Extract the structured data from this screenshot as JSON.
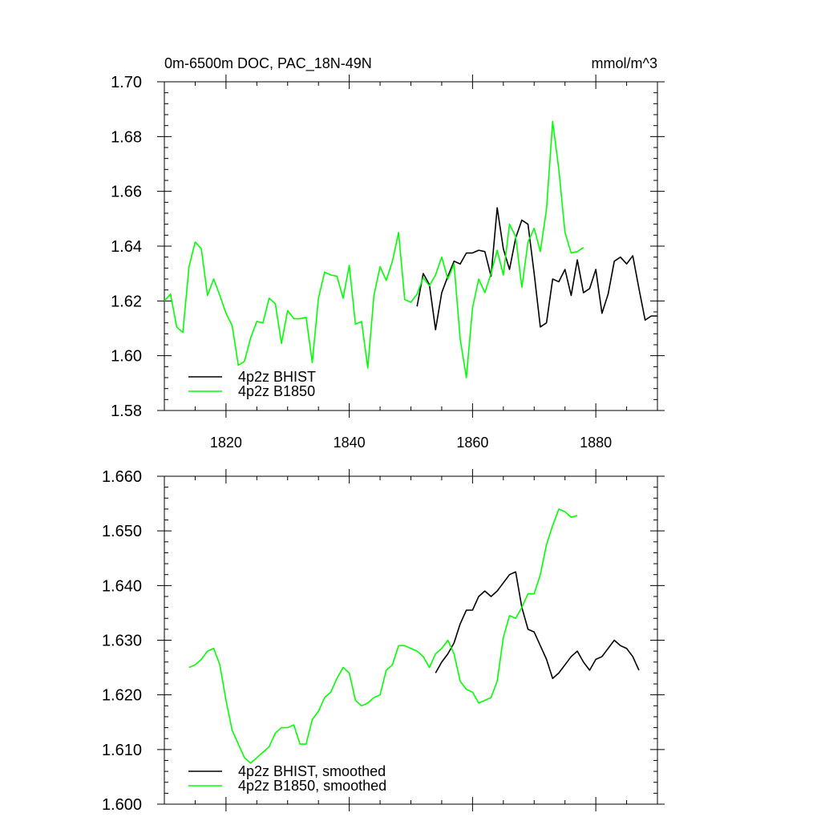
{
  "figure": {
    "title_left": "0m-6500m DOC, PAC_18N-49N",
    "title_right": "mmol/m^3"
  },
  "chart_data": [
    {
      "type": "line",
      "panel": "top",
      "title": "0m-6500m DOC, PAC_18N-49N",
      "units": "mmol/m^3",
      "xlim": [
        1810,
        1890
      ],
      "ylim": [
        1.58,
        1.7
      ],
      "x_ticks": [
        1820,
        1840,
        1860,
        1880
      ],
      "x_tick_labels": [
        "1820",
        "1840",
        "1860",
        "1880"
      ],
      "x_minor_step": 5,
      "y_ticks": [
        1.58,
        1.6,
        1.62,
        1.64,
        1.66,
        1.68,
        1.7
      ],
      "y_tick_labels": [
        "1.58",
        "1.60",
        "1.62",
        "1.64",
        "1.66",
        "1.68",
        "1.70"
      ],
      "y_minor_step": 0.004,
      "legend_position": "bottom-left",
      "series": [
        {
          "name": "4p2z BHIST",
          "color": "#000000",
          "x0": 1851,
          "dx": 1,
          "values": [
            1.618,
            1.63,
            1.626,
            1.6095,
            1.623,
            1.629,
            1.6345,
            1.6335,
            1.6375,
            1.6375,
            1.6385,
            1.638,
            1.629,
            1.654,
            1.639,
            1.6315,
            1.643,
            1.6495,
            1.648,
            1.63,
            1.6105,
            1.612,
            1.628,
            1.627,
            1.6315,
            1.622,
            1.635,
            1.623,
            1.6245,
            1.6315,
            1.6155,
            1.6225,
            1.6345,
            1.636,
            1.6335,
            1.6365,
            1.6245,
            1.613,
            1.6145,
            1.6145
          ]
        },
        {
          "name": "4p2z B1850",
          "color": "#00ff00",
          "x0": 1810,
          "dx": 1,
          "values": [
            1.62,
            1.6225,
            1.6105,
            1.6085,
            1.6325,
            1.6415,
            1.639,
            1.622,
            1.628,
            1.622,
            1.6155,
            1.611,
            1.5965,
            1.598,
            1.6065,
            1.6125,
            1.612,
            1.621,
            1.619,
            1.6045,
            1.6165,
            1.6135,
            1.6135,
            1.614,
            1.5975,
            1.621,
            1.6305,
            1.6295,
            1.629,
            1.621,
            1.633,
            1.6115,
            1.6125,
            1.5955,
            1.622,
            1.6325,
            1.6275,
            1.6345,
            1.645,
            1.6205,
            1.6195,
            1.6225,
            1.6285,
            1.6255,
            1.6295,
            1.636,
            1.628,
            1.6335,
            1.606,
            1.592,
            1.6175,
            1.628,
            1.623,
            1.63,
            1.6385,
            1.6295,
            1.648,
            1.6435,
            1.625,
            1.6415,
            1.6465,
            1.638,
            1.6535,
            1.6855,
            1.668,
            1.645,
            1.6375,
            1.638,
            1.6395
          ]
        }
      ]
    },
    {
      "type": "line",
      "panel": "bottom",
      "xlim": [
        1810,
        1890
      ],
      "ylim": [
        1.6,
        1.66
      ],
      "x_ticks": [
        1820,
        1840,
        1860,
        1880
      ],
      "x_minor_step": 5,
      "y_ticks": [
        1.6,
        1.61,
        1.62,
        1.63,
        1.64,
        1.65,
        1.66
      ],
      "y_tick_labels": [
        "1.600",
        "1.610",
        "1.620",
        "1.630",
        "1.640",
        "1.650",
        "1.660"
      ],
      "y_minor_step": 0.002,
      "legend_position": "bottom-left",
      "series": [
        {
          "name": "4p2z BHIST, smoothed",
          "color": "#000000",
          "x0": 1854,
          "dx": 1,
          "values": [
            1.624,
            1.626,
            1.6275,
            1.6295,
            1.633,
            1.6355,
            1.6355,
            1.638,
            1.639,
            1.638,
            1.639,
            1.6405,
            1.642,
            1.6425,
            1.636,
            1.632,
            1.6315,
            1.629,
            1.6265,
            1.623,
            1.624,
            1.6255,
            1.627,
            1.628,
            1.626,
            1.6245,
            1.6265,
            1.627,
            1.6285,
            1.63,
            1.629,
            1.6285,
            1.627,
            1.6245
          ]
        },
        {
          "name": "4p2z B1850, smoothed",
          "color": "#00ff00",
          "x0": 1814,
          "dx": 1,
          "values": [
            1.625,
            1.6255,
            1.6265,
            1.628,
            1.6285,
            1.6255,
            1.619,
            1.6135,
            1.611,
            1.6085,
            1.6075,
            1.6085,
            1.6095,
            1.6105,
            1.613,
            1.614,
            1.614,
            1.6145,
            1.611,
            1.611,
            1.6155,
            1.617,
            1.6195,
            1.6205,
            1.623,
            1.625,
            1.624,
            1.619,
            1.618,
            1.6185,
            1.6195,
            1.62,
            1.6245,
            1.6255,
            1.629,
            1.629,
            1.6285,
            1.628,
            1.627,
            1.625,
            1.6275,
            1.6285,
            1.63,
            1.6275,
            1.6225,
            1.621,
            1.6205,
            1.6185,
            1.619,
            1.6195,
            1.6225,
            1.6305,
            1.6345,
            1.634,
            1.636,
            1.6385,
            1.6385,
            1.642,
            1.6475,
            1.651,
            1.654,
            1.6535,
            1.6525,
            1.6528
          ]
        }
      ]
    }
  ]
}
